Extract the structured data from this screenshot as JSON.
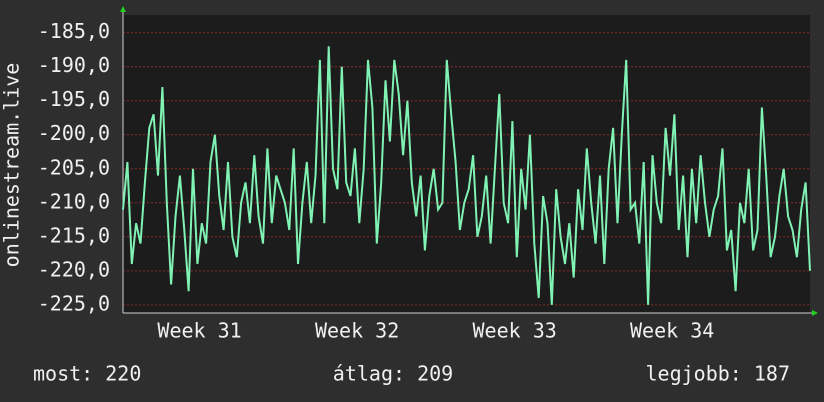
{
  "chart_data": {
    "type": "line",
    "y_label": "onlinestream.live",
    "x": [
      0,
      0.2,
      0.4,
      0.6,
      0.8,
      1,
      1.2,
      1.4,
      1.6,
      1.8,
      2,
      2.2,
      2.4,
      2.6,
      2.8,
      3,
      3.2,
      3.4,
      3.6,
      3.8,
      4,
      4.2,
      4.4,
      4.6,
      4.8,
      5,
      5.2,
      5.4,
      5.6,
      5.8,
      6,
      6.2,
      6.4,
      6.6,
      6.8,
      7,
      7.2,
      7.4,
      7.6,
      7.8,
      8,
      8.2,
      8.4,
      8.6,
      8.8,
      9,
      9.2,
      9.4,
      9.6,
      9.8,
      10,
      10.2,
      10.4,
      10.6,
      10.8,
      11,
      11.2,
      11.4,
      11.6,
      11.8,
      12,
      12.2,
      12.4,
      12.6,
      12.8,
      13,
      13.2,
      13.4,
      13.6,
      13.8,
      14,
      14.2,
      14.4,
      14.6,
      14.8,
      15,
      15.2,
      15.4,
      15.6,
      15.8,
      16,
      16.2,
      16.4,
      16.6,
      16.8,
      17,
      17.2,
      17.4,
      17.6,
      17.8,
      18,
      18.2,
      18.4,
      18.6,
      18.8,
      19,
      19.2,
      19.4,
      19.6,
      19.8,
      20,
      20.2,
      20.4,
      20.6,
      20.8,
      21,
      21.2,
      21.4,
      21.6,
      21.8,
      22,
      22.2,
      22.4,
      22.6,
      22.8,
      23,
      23.2,
      23.4,
      23.6,
      23.8,
      24,
      24.2,
      24.4,
      24.6,
      24.8,
      25,
      25.2,
      25.4,
      25.6,
      25.8,
      26,
      26.2,
      26.4,
      26.6,
      26.8,
      27,
      27.2,
      27.4,
      27.6,
      27.8,
      28,
      28.2,
      28.4,
      28.6,
      28.8,
      29,
      29.2,
      29.4,
      29.6,
      29.8,
      30,
      30.2,
      30.4,
      30.6,
      30.8,
      31,
      31.2,
      31.4
    ],
    "series": [
      {
        "color": "#80f2b4",
        "values": [
          -211,
          -204,
          -219,
          -213,
          -216,
          -207,
          -199,
          -197,
          -206,
          -193,
          -210,
          -222,
          -212,
          -206,
          -214,
          -223,
          -205,
          -219,
          -213,
          -216,
          -204,
          -200,
          -209,
          -214,
          -204,
          -215,
          -218,
          -210,
          -207,
          -213,
          -203,
          -212,
          -216,
          -202,
          -213,
          -206,
          -208,
          -210,
          -214,
          -202,
          -219,
          -210,
          -204,
          -213,
          -206,
          -189,
          -213,
          -187,
          -205,
          -208,
          -190,
          -207,
          -209,
          -202,
          -213,
          -205,
          -189,
          -196,
          -216,
          -207,
          -192,
          -201,
          -189,
          -194,
          -203,
          -195,
          -207,
          -212,
          -206,
          -217,
          -209,
          -205,
          -211,
          -210,
          -189,
          -197,
          -204,
          -214,
          -210,
          -208,
          -203,
          -215,
          -212,
          -206,
          -216,
          -205,
          -194,
          -210,
          -213,
          -198,
          -218,
          -205,
          -211,
          -200,
          -216,
          -224,
          -209,
          -213,
          -225,
          -208,
          -215,
          -219,
          -213,
          -221,
          -208,
          -214,
          -202,
          -210,
          -216,
          -206,
          -219,
          -205,
          -199,
          -213,
          -200,
          -189,
          -211,
          -210,
          -216,
          -204,
          -225,
          -203,
          -210,
          -213,
          -199,
          -206,
          -197,
          -214,
          -206,
          -218,
          -205,
          -213,
          -203,
          -210,
          -215,
          -211,
          -209,
          -202,
          -217,
          -214,
          -223,
          -210,
          -213,
          -205,
          -217,
          -214,
          -196,
          -206,
          -218,
          -215,
          -209,
          -205,
          -212,
          -214,
          -218,
          -211,
          -207,
          -220
        ]
      }
    ],
    "xlim": [
      0,
      31.4
    ],
    "xticks": [
      {
        "value": 3.5,
        "label": "Week 31"
      },
      {
        "value": 10.7,
        "label": "Week 32"
      },
      {
        "value": 17.9,
        "label": "Week 33"
      },
      {
        "value": 25.1,
        "label": "Week 34"
      }
    ],
    "ylim": [
      -226.2,
      -182.4
    ],
    "yticks": [
      {
        "value": -225,
        "label": "-225,0"
      },
      {
        "value": -220,
        "label": "-220,0"
      },
      {
        "value": -215,
        "label": "-215,0"
      },
      {
        "value": -210,
        "label": "-210,0"
      },
      {
        "value": -205,
        "label": "-205,0"
      },
      {
        "value": -200,
        "label": "-200,0"
      },
      {
        "value": -195,
        "label": "-195,0"
      },
      {
        "value": -190,
        "label": "-190,0"
      },
      {
        "value": -185,
        "label": "-185,0"
      }
    ],
    "grid": true,
    "stats": [
      "most: 220",
      "átlag: 209",
      "legjobb: 187"
    ]
  }
}
